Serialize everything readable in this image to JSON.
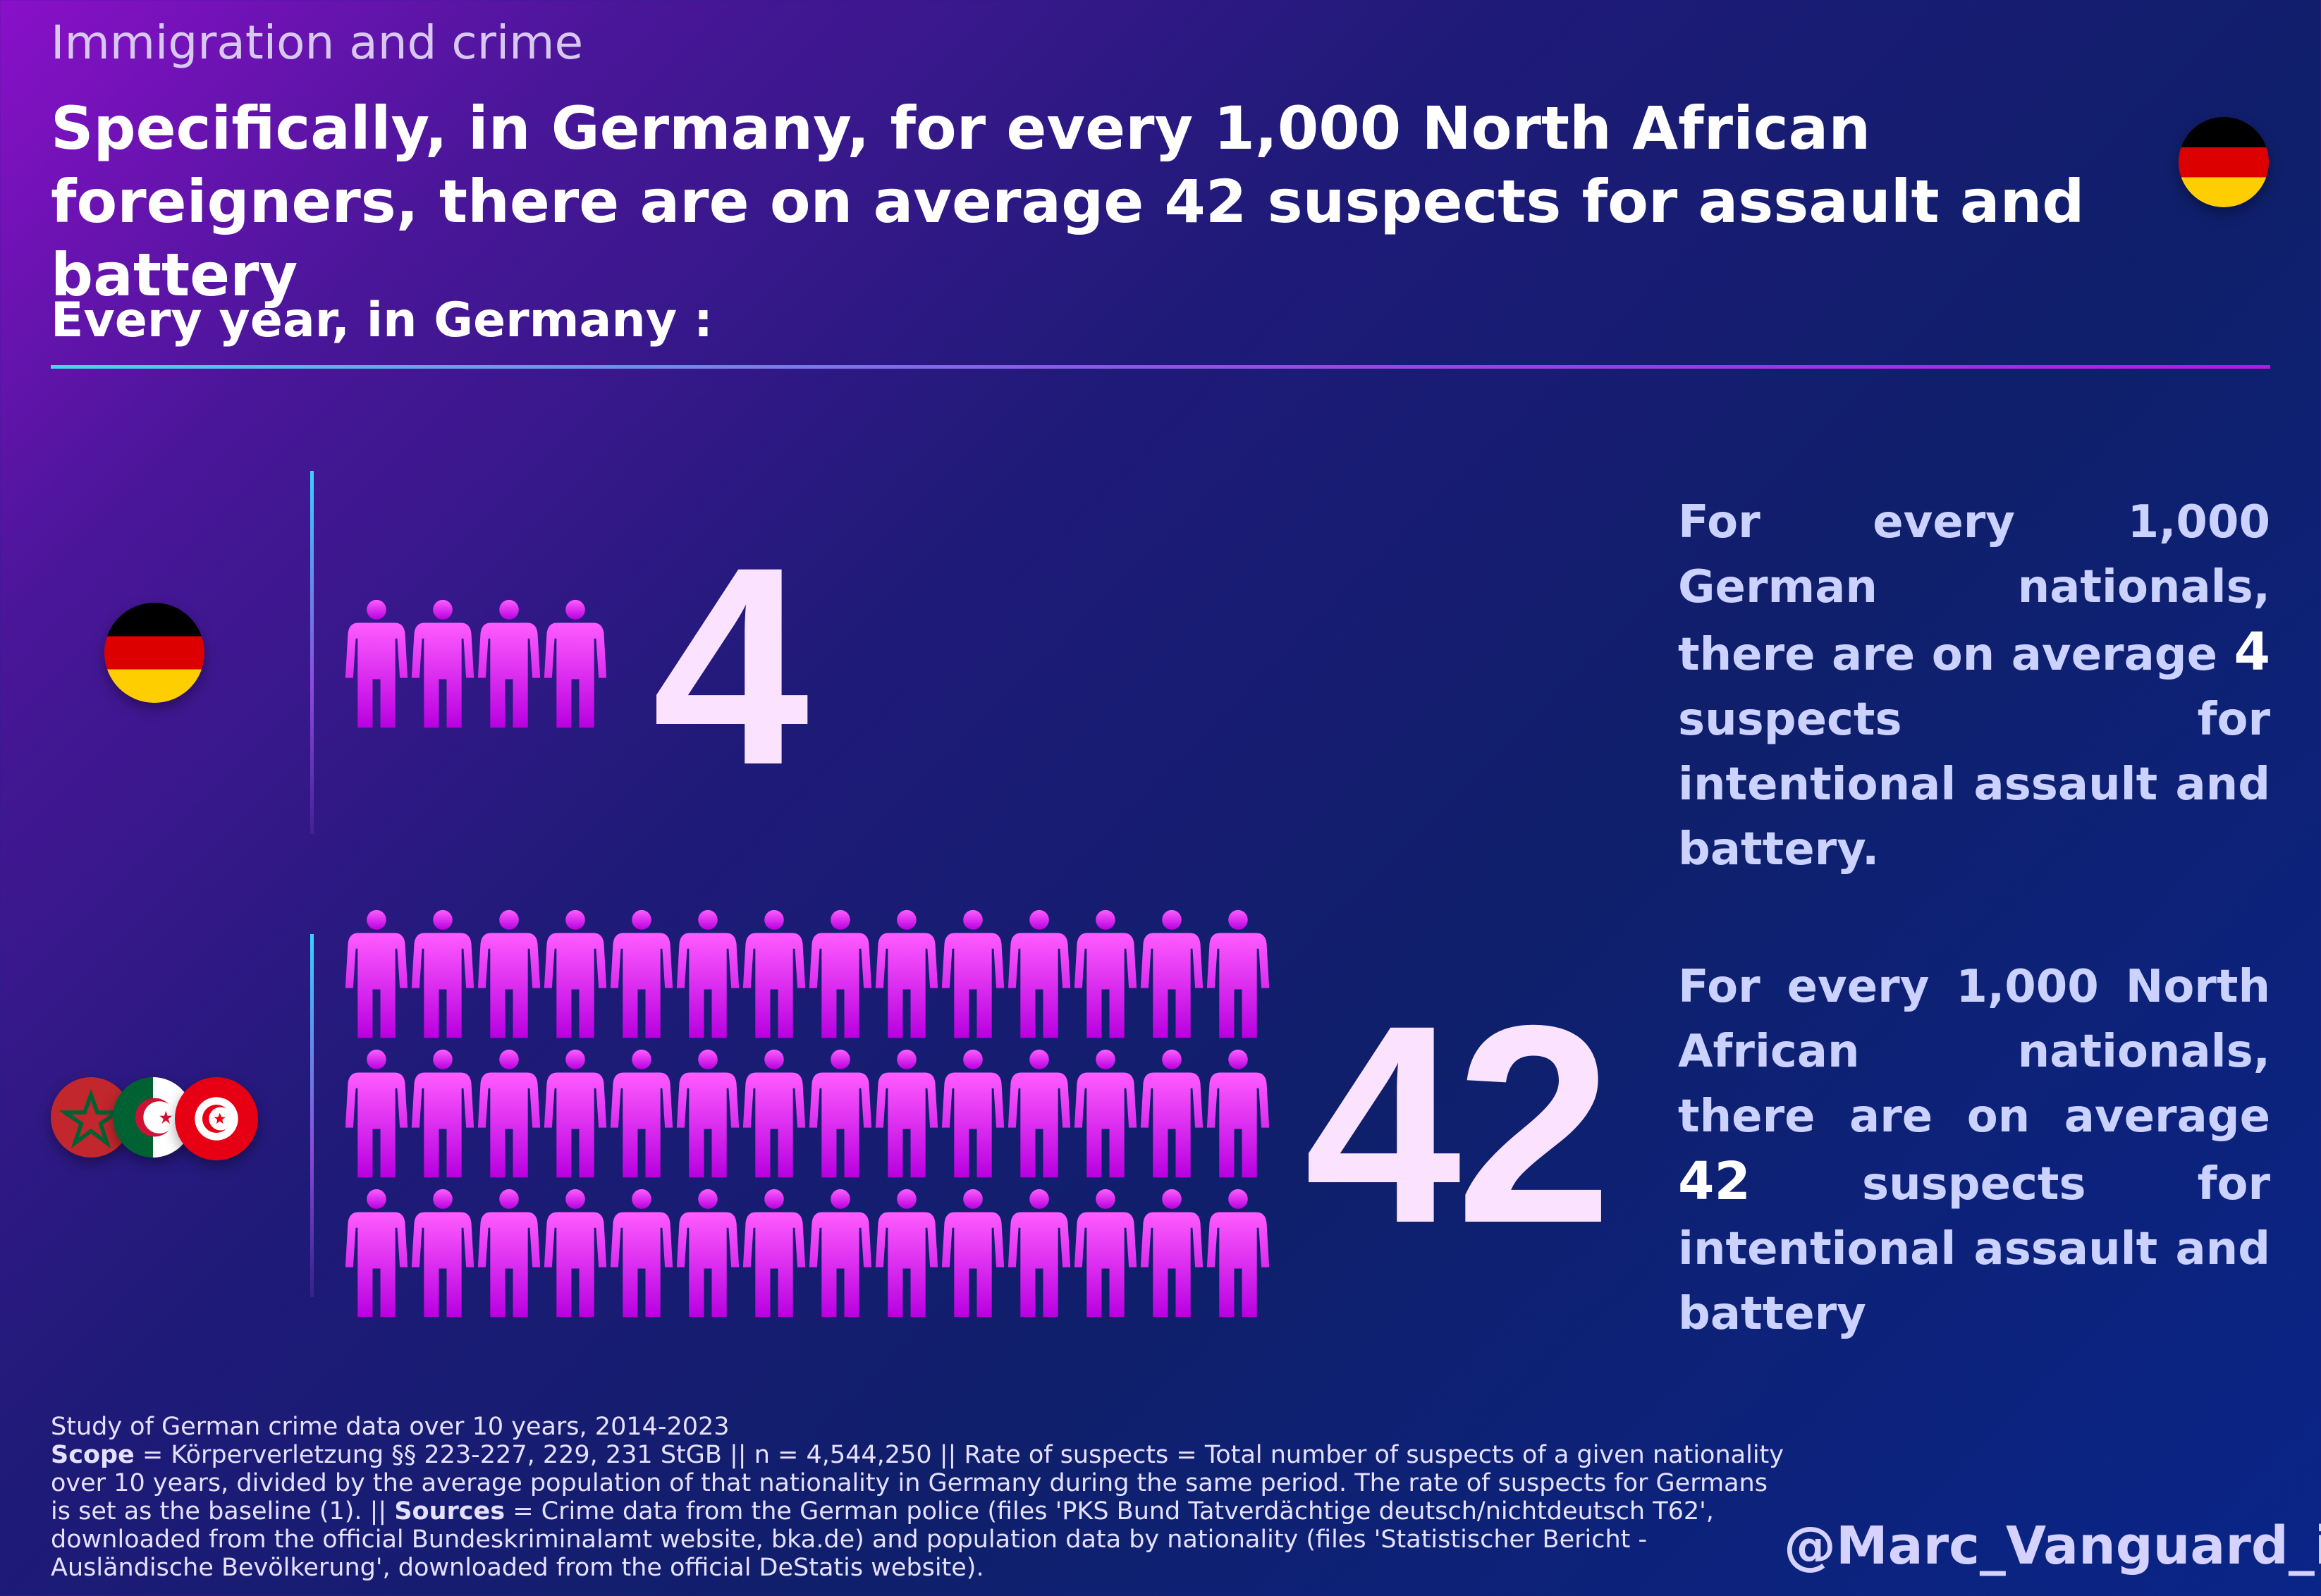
{
  "header": {
    "kicker": "Immigration and crime",
    "headline": "Specifically, in Germany, for every 1,000 North African foreigners, there are on average 42 suspects for assault and battery",
    "flag_icon": "germany-flag-icon"
  },
  "subtitle": "Every year, in Germany :",
  "chart_data": {
    "type": "pictogram",
    "unit": "suspects per 1,000 nationals",
    "series": [
      {
        "group_icon": "germany-flag-icon",
        "value": 4,
        "value_label": "4",
        "description_parts": [
          "For every 1,000 German nationals, there are on average ",
          "4",
          " suspects for intentional assault and battery."
        ]
      },
      {
        "group_icon": "north-africa-flags-icon",
        "value": 42,
        "value_label": "42",
        "description_parts": [
          "For every 1,000 North African nationals, there are on average ",
          "42",
          " suspects for intentional assault and battery"
        ]
      }
    ]
  },
  "colors": {
    "icon_top": "#ff5cff",
    "icon_bottom": "#b800e0",
    "number": "#fbe3ff",
    "description": "#ccd2ff",
    "background_start": "#8a10c9",
    "background_end": "#0a2588"
  },
  "footer": {
    "study": "Study of German crime data over 10 years, 2014-2023",
    "scope_label": "Scope",
    "scope_text": " = Körperverletzung §§ 223-227, 229, 231 StGB || n = 4,544,250 || Rate of suspects = Total number of suspects of a given nationality over 10 years, divided by the average population of that nationality in Germany during the same period. The rate of suspects for Germans is set as the baseline (1). || ",
    "sources_label": "Sources",
    "sources_text": " = Crime data from the German police (files 'PKS Bund Tatverdächtige deutsch/nichtdeutsch T62', downloaded from the official Bundeskriminalamt website, bka.de) and population data by nationality (files 'Statistischer Bericht - Ausländische Bevölkerung', downloaded from the official DeStatis website)."
  },
  "handle": "@Marc_Vanguard_i"
}
